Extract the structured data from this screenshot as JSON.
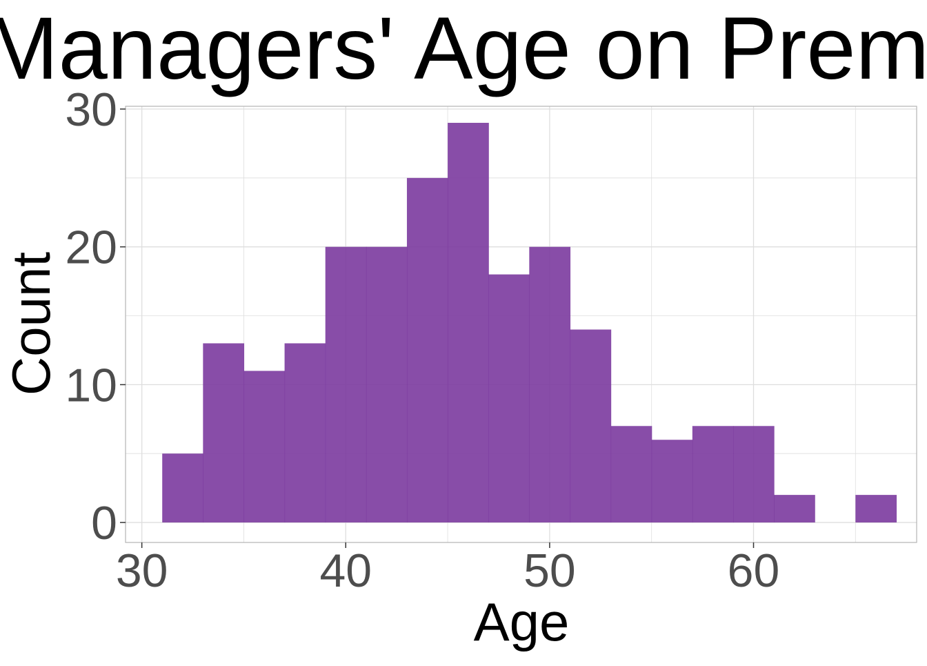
{
  "chart_data": {
    "type": "bar",
    "title": "Managers' Age on Prem",
    "xlabel": "Age",
    "ylabel": "Count",
    "bin_width": 2,
    "bins": [
      {
        "x_start": 31,
        "x_end": 33,
        "count": 5
      },
      {
        "x_start": 33,
        "x_end": 35,
        "count": 13
      },
      {
        "x_start": 35,
        "x_end": 37,
        "count": 11
      },
      {
        "x_start": 37,
        "x_end": 39,
        "count": 13
      },
      {
        "x_start": 39,
        "x_end": 41,
        "count": 20
      },
      {
        "x_start": 41,
        "x_end": 43,
        "count": 20
      },
      {
        "x_start": 43,
        "x_end": 45,
        "count": 25
      },
      {
        "x_start": 45,
        "x_end": 47,
        "count": 29
      },
      {
        "x_start": 47,
        "x_end": 49,
        "count": 18
      },
      {
        "x_start": 49,
        "x_end": 51,
        "count": 20
      },
      {
        "x_start": 51,
        "x_end": 53,
        "count": 14
      },
      {
        "x_start": 53,
        "x_end": 55,
        "count": 7
      },
      {
        "x_start": 55,
        "x_end": 57,
        "count": 6
      },
      {
        "x_start": 57,
        "x_end": 59,
        "count": 7
      },
      {
        "x_start": 59,
        "x_end": 61,
        "count": 7
      },
      {
        "x_start": 61,
        "x_end": 63,
        "count": 2
      },
      {
        "x_start": 63,
        "x_end": 65,
        "count": 0
      },
      {
        "x_start": 65,
        "x_end": 67,
        "count": 2
      }
    ],
    "xlim": [
      29.2,
      68.0
    ],
    "ylim": [
      -1.45,
      30.2
    ],
    "x_ticks": [
      30,
      40,
      50,
      60
    ],
    "x_tick_labels": [
      "30",
      "40",
      "50",
      "60"
    ],
    "y_ticks": [
      0,
      10,
      20,
      30
    ],
    "y_tick_labels": [
      "0",
      "10",
      "20",
      "30"
    ],
    "grid": true,
    "bar_color": "#7b3a9e",
    "grid_color": "#dedede",
    "panel_border_color": "#b3b3b3"
  }
}
